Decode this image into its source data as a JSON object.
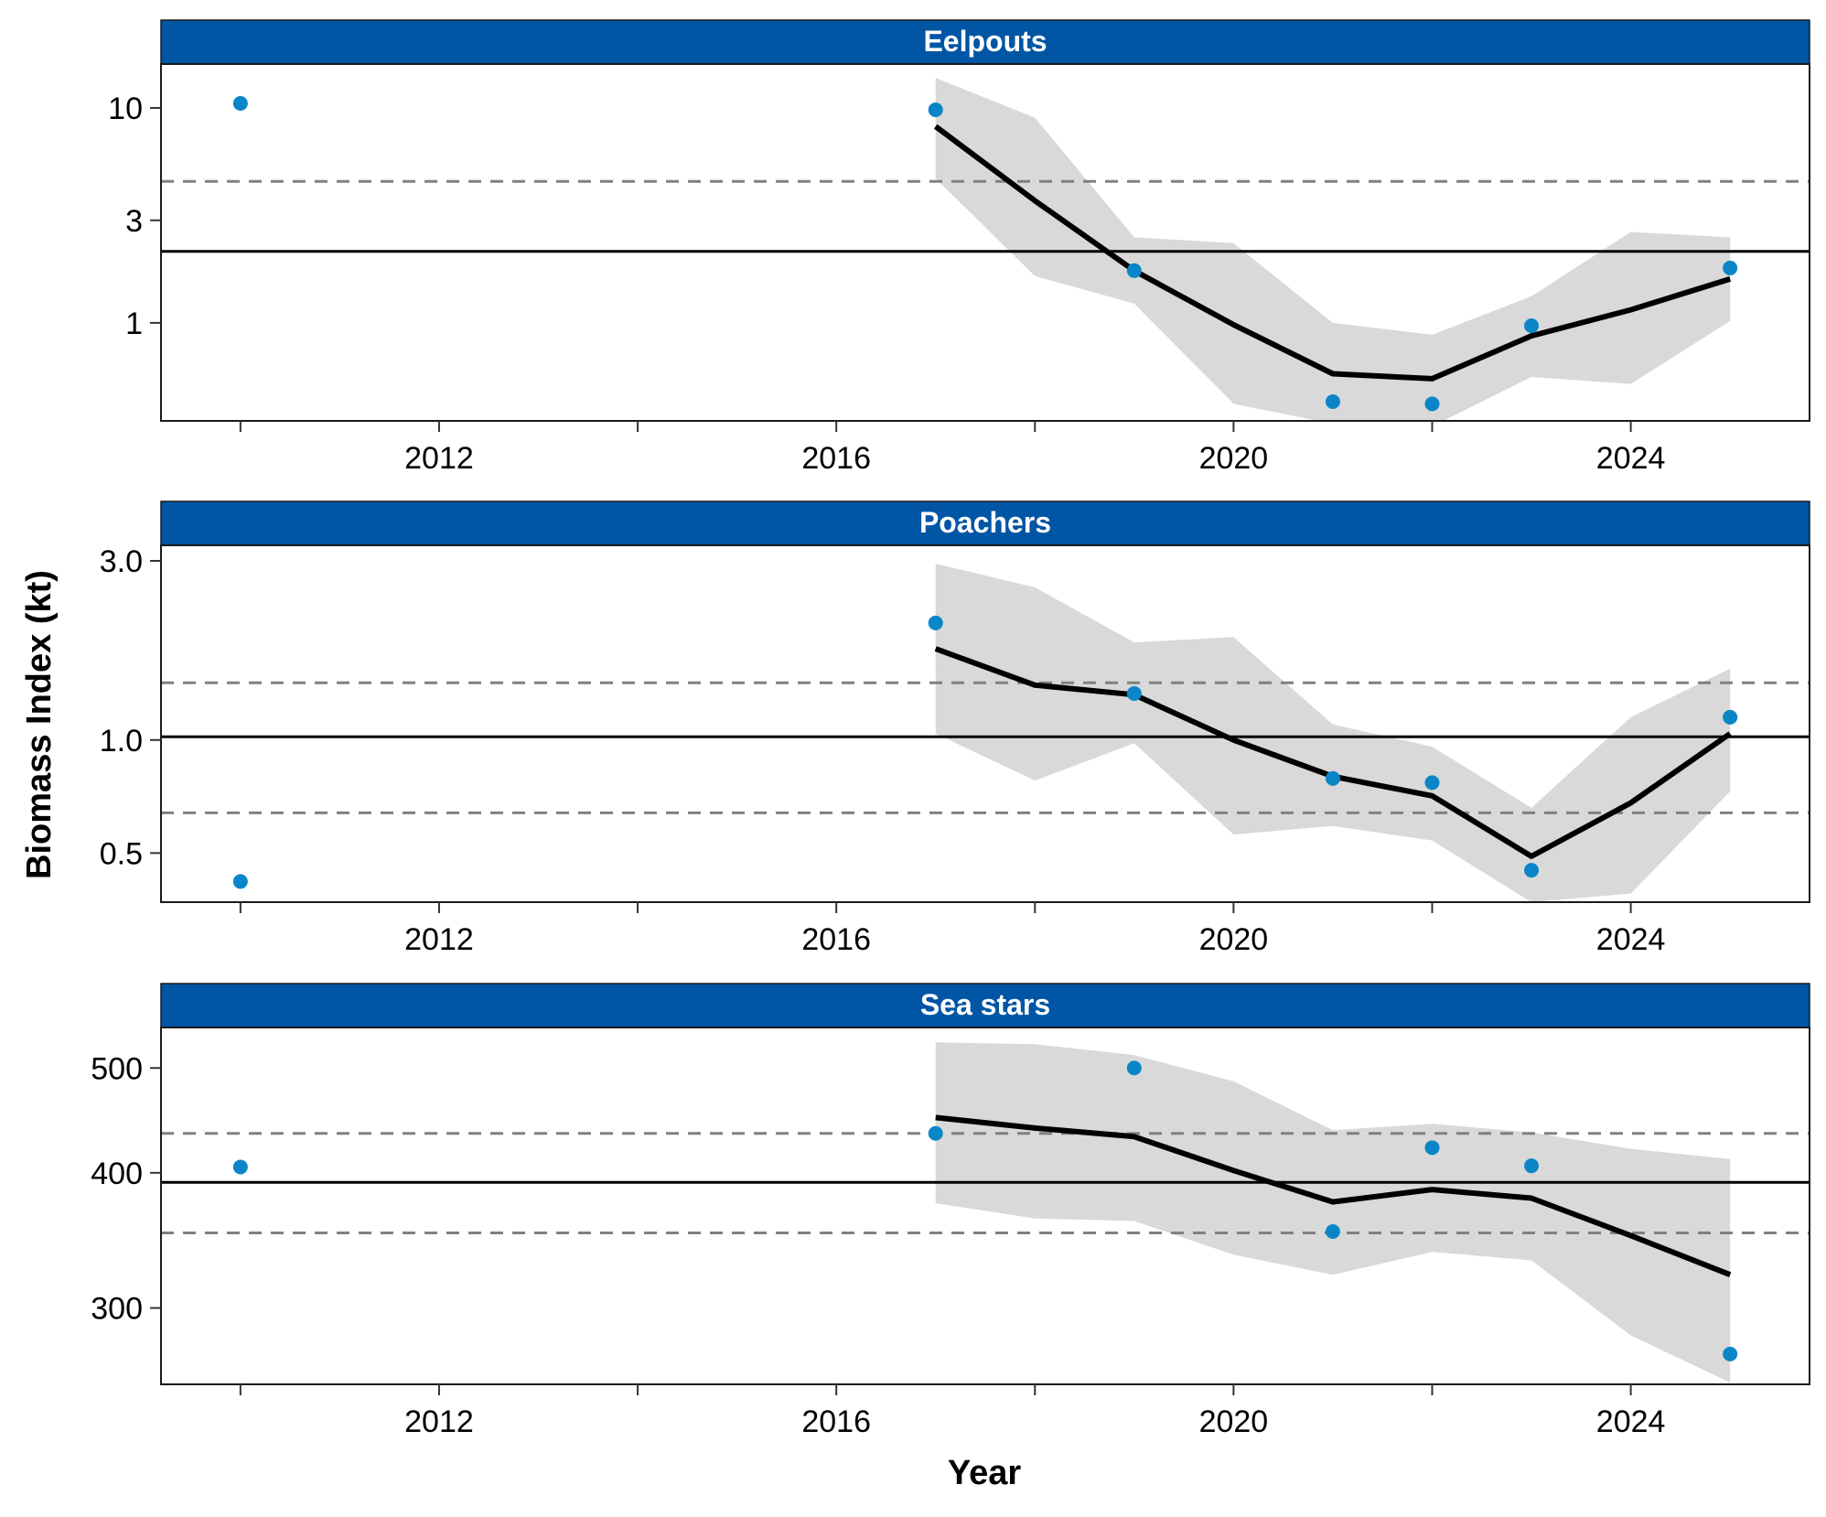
{
  "chart_data": {
    "type": "line",
    "xlabel": "Year",
    "ylabel": "Biomass Index (kt)",
    "xlim": [
      2009.2,
      2025.8
    ],
    "x_ticks": [
      2010,
      2012,
      2014,
      2016,
      2018,
      2020,
      2022,
      2024
    ],
    "x_tick_labels": [
      "2012",
      "2016",
      "2020",
      "2024"
    ],
    "x_tick_label_values": [
      2012,
      2016,
      2020,
      2024
    ],
    "colors": {
      "strip": "#0055A4",
      "strip_text": "#ffffff",
      "points": "#0A86C8",
      "line": "#000000",
      "ribbon": "#D9D9D9",
      "reference": "#000000",
      "bounds": "#808080"
    },
    "panels": [
      {
        "title": "Eelpouts",
        "scale": "log",
        "ylim": [
          0.35,
          16
        ],
        "y_ticks": [
          1,
          3,
          10
        ],
        "y_tick_labels": [
          "1",
          "3",
          "10"
        ],
        "mean_line": 2.15,
        "sd_lines": [
          4.55
        ],
        "points": {
          "x": [
            2010,
            2017,
            2019,
            2021,
            2022,
            2023,
            2025
          ],
          "y": [
            10.5,
            9.8,
            1.75,
            0.43,
            0.42,
            0.97,
            1.8
          ]
        },
        "fit": {
          "x": [
            2017,
            2018,
            2019,
            2020,
            2021,
            2022,
            2023,
            2024,
            2025
          ],
          "y": [
            8.2,
            3.7,
            1.75,
            0.98,
            0.58,
            0.55,
            0.87,
            1.15,
            1.6
          ]
        },
        "ribbon": {
          "x": [
            2017,
            2018,
            2019,
            2020,
            2021,
            2022,
            2023,
            2024,
            2025
          ],
          "upper": [
            13.8,
            9.0,
            2.5,
            2.35,
            1.0,
            0.88,
            1.33,
            2.65,
            2.5
          ],
          "lower": [
            4.7,
            1.65,
            1.23,
            0.42,
            0.34,
            0.33,
            0.56,
            0.52,
            1.02
          ]
        }
      },
      {
        "title": "Poachers",
        "scale": "log",
        "ylim": [
          0.37,
          3.3
        ],
        "y_ticks": [
          0.5,
          1.0,
          3.0
        ],
        "y_tick_labels": [
          "0.5",
          "1.0",
          "3.0"
        ],
        "mean_line": 1.02,
        "sd_lines": [
          1.42,
          0.64
        ],
        "points": {
          "x": [
            2010,
            2017,
            2019,
            2021,
            2022,
            2023,
            2025
          ],
          "y": [
            0.42,
            2.05,
            1.33,
            0.79,
            0.77,
            0.45,
            1.15
          ]
        },
        "fit": {
          "x": [
            2017,
            2018,
            2019,
            2020,
            2021,
            2022,
            2023,
            2024,
            2025
          ],
          "y": [
            1.75,
            1.4,
            1.32,
            1.0,
            0.8,
            0.71,
            0.49,
            0.68,
            1.04
          ]
        },
        "ribbon": {
          "x": [
            2017,
            2018,
            2019,
            2020,
            2021,
            2022,
            2023,
            2024,
            2025
          ],
          "upper": [
            2.95,
            2.55,
            1.82,
            1.88,
            1.1,
            0.96,
            0.66,
            1.15,
            1.55
          ],
          "lower": [
            1.04,
            0.78,
            0.98,
            0.56,
            0.59,
            0.54,
            0.37,
            0.39,
            0.73
          ]
        }
      },
      {
        "title": "Sea stars",
        "scale": "log",
        "ylim": [
          255,
          545
        ],
        "y_ticks": [
          300,
          400,
          500
        ],
        "y_tick_labels": [
          "300",
          "400",
          "500"
        ],
        "mean_line": 392,
        "sd_lines": [
          435,
          352
        ],
        "points": {
          "x": [
            2010,
            2017,
            2019,
            2021,
            2022,
            2023,
            2025
          ],
          "y": [
            405,
            435,
            500,
            353,
            422,
            406,
            272
          ]
        },
        "fit": {
          "x": [
            2017,
            2018,
            2019,
            2020,
            2021,
            2022,
            2023,
            2024,
            2025
          ],
          "y": [
            450,
            440,
            432,
            402,
            376,
            386,
            379,
            350,
            322
          ]
        },
        "ribbon": {
          "x": [
            2017,
            2018,
            2019,
            2020,
            2021,
            2022,
            2023,
            2024,
            2025
          ],
          "upper": [
            528,
            526,
            514,
            486,
            438,
            444,
            436,
            421,
            412
          ],
          "lower": [
            375,
            363,
            361,
            336,
            322,
            338,
            332,
            283,
            256
          ]
        }
      }
    ]
  }
}
